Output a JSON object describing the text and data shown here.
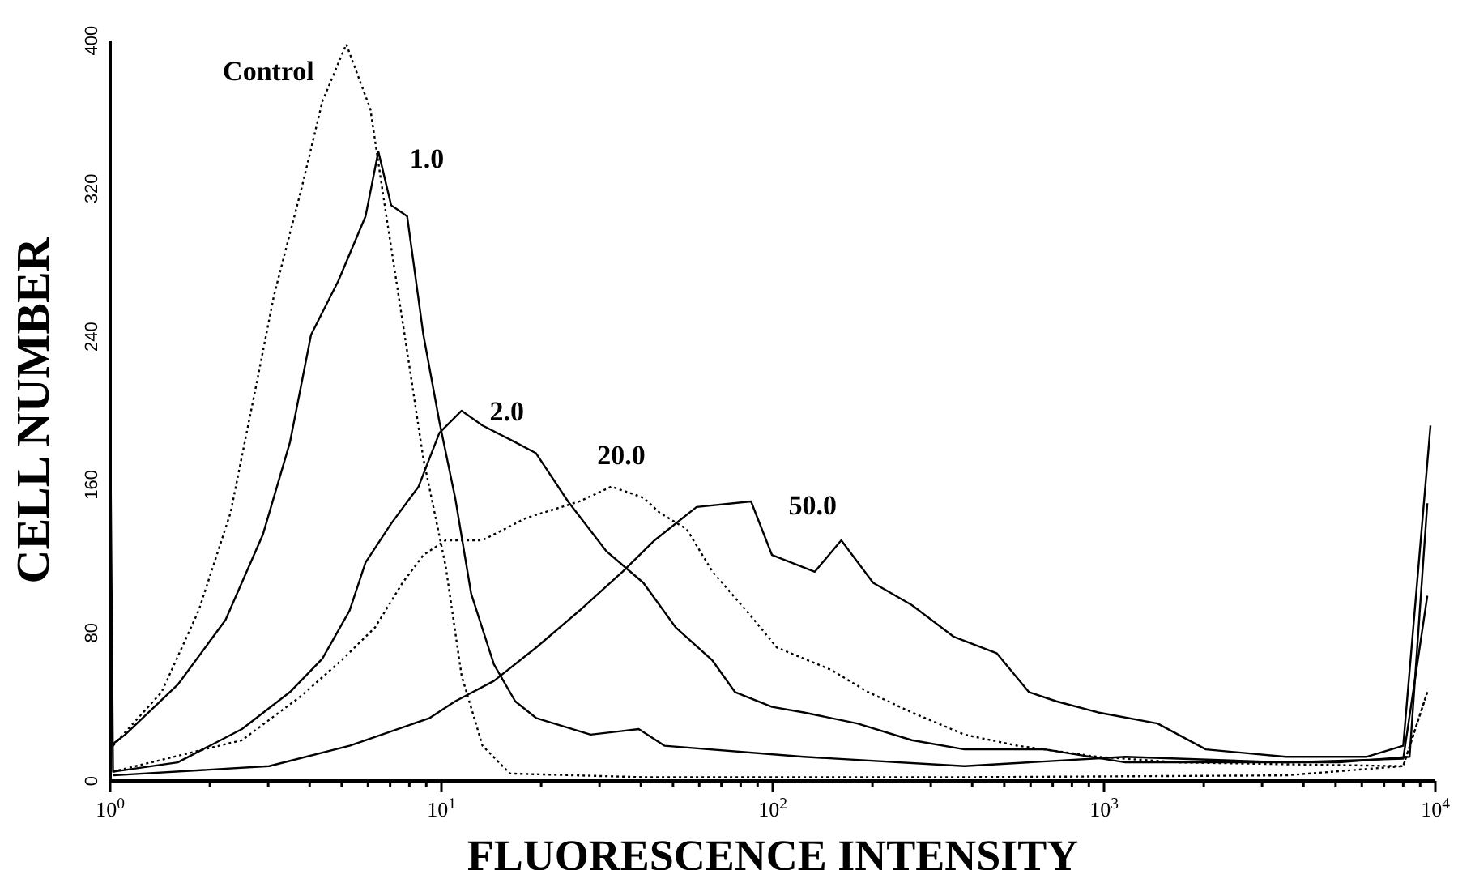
{
  "chart_data": {
    "type": "line",
    "xlabel": "FLUORESCENCE INTENSITY",
    "ylabel": "CELL NUMBER",
    "log": "x",
    "grid": false,
    "legend": false,
    "marker": "none",
    "xlim": [
      1,
      10000
    ],
    "ylim": [
      0,
      400
    ],
    "xticks": [
      {
        "value": 1,
        "label": "10$^{0}$"
      },
      {
        "value": 2,
        "label": null
      },
      {
        "value": 3,
        "label": null
      },
      {
        "value": 4,
        "label": null
      },
      {
        "value": 5,
        "label": null
      },
      {
        "value": 6,
        "label": null
      },
      {
        "value": 7,
        "label": null
      },
      {
        "value": 8,
        "label": null
      },
      {
        "value": 9,
        "label": null
      },
      {
        "value": 10,
        "label": "10$^{1}$"
      },
      {
        "value": 20,
        "label": null
      },
      {
        "value": 30,
        "label": null
      },
      {
        "value": 40,
        "label": null
      },
      {
        "value": 50,
        "label": null
      },
      {
        "value": 60,
        "label": null
      },
      {
        "value": 70,
        "label": null
      },
      {
        "value": 80,
        "label": null
      },
      {
        "value": 90,
        "label": null
      },
      {
        "value": 100,
        "label": "10$^{2}$"
      },
      {
        "value": 200,
        "label": null
      },
      {
        "value": 300,
        "label": null
      },
      {
        "value": 400,
        "label": null
      },
      {
        "value": 500,
        "label": null
      },
      {
        "value": 600,
        "label": null
      },
      {
        "value": 700,
        "label": null
      },
      {
        "value": 800,
        "label": null
      },
      {
        "value": 900,
        "label": null
      },
      {
        "value": 1000,
        "label": "10$^{3}$"
      },
      {
        "value": 2000,
        "label": null
      },
      {
        "value": 3000,
        "label": null
      },
      {
        "value": 4000,
        "label": null
      },
      {
        "value": 5000,
        "label": null
      },
      {
        "value": 6000,
        "label": null
      },
      {
        "value": 7000,
        "label": null
      },
      {
        "value": 8000,
        "label": null
      },
      {
        "value": 9000,
        "label": null
      },
      {
        "value": 10000,
        "label": "10$^{4}$"
      }
    ],
    "yticks": [
      0,
      80,
      160,
      240,
      320,
      400
    ],
    "series": [
      {
        "name": "Control",
        "color": "#000000",
        "line_style": "dotted",
        "x": [
          1.02,
          1.43,
          1.85,
          2.31,
          2.79,
          3.12,
          3.78,
          4.37,
          5.16,
          6.1,
          6.82,
          7.88,
          8.82,
          10.3,
          11.5,
          13.3,
          16.1,
          40.7,
          379,
          3540,
          8000,
          9460
        ],
        "values": [
          19,
          48,
          92,
          145,
          218,
          262,
          320,
          367,
          398,
          363,
          305,
          232,
          174,
          116,
          57,
          19,
          4,
          2,
          2,
          3,
          8,
          48
        ]
      },
      {
        "name": "1.0",
        "color": "#000000",
        "line_style": "solid",
        "x": [
          1.02,
          1.11,
          1.6,
          2.23,
          2.89,
          3.49,
          4.04,
          4.88,
          5.9,
          6.45,
          7.05,
          7.88,
          8.82,
          9.86,
          11.0,
          12.3,
          14.4,
          16.7,
          19.3,
          28.2,
          39.4,
          47.1,
          124,
          379,
          1160,
          3540,
          8000,
          9460
        ],
        "values": [
          20,
          25,
          52,
          87,
          133,
          183,
          241,
          270,
          305,
          340,
          311,
          305,
          241,
          194,
          153,
          101,
          63,
          43,
          34,
          25,
          28,
          19,
          13,
          8,
          13,
          10,
          12,
          100
        ]
      },
      {
        "name": "2.0",
        "color": "#000000",
        "line_style": "solid",
        "x": [
          1,
          1.02,
          1.6,
          2.5,
          3.49,
          4.37,
          5.28,
          5.9,
          7.05,
          8.53,
          9.86,
          11.5,
          13.3,
          16.7,
          19.3,
          24.1,
          31.5,
          40.7,
          50.9,
          65.8,
          76.9,
          99.5,
          124,
          180,
          263,
          379,
          663,
          1160,
          2450,
          5120,
          8360,
          9460
        ],
        "values": [
          200,
          5,
          10,
          28,
          48,
          66,
          92,
          118,
          139,
          159,
          188,
          200,
          192,
          183,
          177,
          151,
          124,
          107,
          83,
          65,
          48,
          40,
          37,
          31,
          22,
          17,
          17,
          10,
          10,
          10,
          13,
          150
        ]
      },
      {
        "name": "20.0",
        "color": "#000000",
        "line_style": "dotted",
        "x": [
          1.02,
          2.5,
          3.78,
          5.05,
          6.31,
          7.63,
          8.82,
          10.3,
          13.3,
          18.0,
          26.1,
          32.6,
          40.7,
          45.5,
          55.0,
          65.8,
          86.0,
          103,
          150,
          194,
          263,
          379,
          548,
          959,
          1680,
          3540,
          8000,
          9460
        ],
        "values": [
          5,
          22,
          46,
          66,
          83,
          107,
          122,
          130,
          130,
          142,
          151,
          159,
          153,
          145,
          136,
          113,
          89,
          72,
          60,
          48,
          37,
          25,
          19,
          13,
          10,
          9,
          8,
          48
        ]
      },
      {
        "name": "50.0",
        "color": "#000000",
        "line_style": "solid",
        "x": [
          1.02,
          3.02,
          5.28,
          9.22,
          11.0,
          14.4,
          19.3,
          26.1,
          35.2,
          44.0,
          58.9,
          86.0,
          99.5,
          134,
          161,
          201,
          263,
          351,
          474,
          593,
          718,
          959,
          1450,
          2030,
          3540,
          6190,
          8000,
          9670
        ],
        "values": [
          3,
          8,
          19,
          34,
          43,
          54,
          72,
          92,
          113,
          130,
          148,
          151,
          122,
          113,
          130,
          107,
          95,
          78,
          69,
          48,
          43,
          37,
          31,
          17,
          13,
          13,
          19,
          192
        ]
      }
    ]
  }
}
